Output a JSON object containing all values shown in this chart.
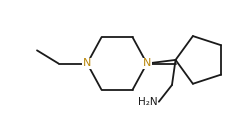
{
  "bg_color": "#ffffff",
  "bond_color": "#1a1a1a",
  "N_color": "#b8860b",
  "label_color": "#1a1a1a",
  "linewidth": 1.3,
  "figsize": [
    2.46,
    1.27
  ],
  "dpi": 100,
  "xlim": [
    0,
    10
  ],
  "ylim": [
    0,
    5.2
  ]
}
